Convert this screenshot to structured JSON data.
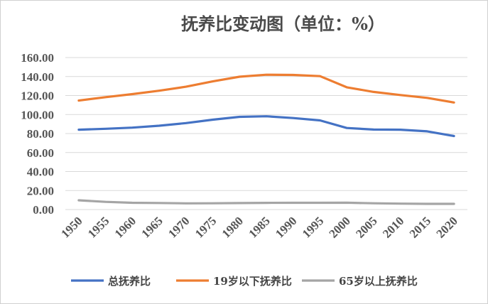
{
  "chart_data": {
    "type": "line",
    "title": "抚养比变动图（单位：%）",
    "xlabel": "",
    "ylabel": "",
    "x": [
      1950,
      1955,
      1960,
      1965,
      1970,
      1975,
      1980,
      1985,
      1990,
      1995,
      2000,
      2005,
      2010,
      2015,
      2020
    ],
    "ylim": [
      0,
      160
    ],
    "yticks": [
      "0.00",
      "20.00",
      "40.00",
      "60.00",
      "80.00",
      "100.00",
      "120.00",
      "140.00",
      "160.00"
    ],
    "grid": true,
    "legend_position": "bottom",
    "series": [
      {
        "name": "总抚养比",
        "color": "#4472c4",
        "values": [
          84.0,
          85.0,
          86.2,
          88.2,
          91.0,
          94.6,
          97.6,
          98.2,
          96.3,
          93.8,
          85.8,
          84.2,
          84.0,
          82.3,
          77.4
        ]
      },
      {
        "name": "19岁以下抚养比",
        "color": "#ed7d31",
        "values": [
          114.7,
          118.3,
          121.5,
          125.1,
          129.3,
          134.9,
          139.8,
          141.9,
          141.7,
          140.4,
          128.7,
          123.8,
          120.5,
          117.5,
          112.7
        ]
      },
      {
        "name": "65岁以上抚养比",
        "color": "#a5a5a5",
        "values": [
          9.7,
          8.1,
          7.1,
          6.9,
          6.5,
          6.6,
          6.8,
          7.0,
          7.1,
          7.1,
          7.2,
          6.6,
          6.2,
          6.0,
          6.0
        ]
      }
    ]
  }
}
